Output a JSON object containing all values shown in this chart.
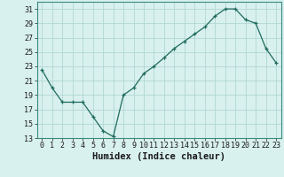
{
  "x": [
    0,
    1,
    2,
    3,
    4,
    5,
    6,
    7,
    8,
    9,
    10,
    11,
    12,
    13,
    14,
    15,
    16,
    17,
    18,
    19,
    20,
    21,
    22,
    23
  ],
  "y": [
    22.5,
    20.0,
    18.0,
    18.0,
    18.0,
    16.0,
    14.0,
    13.2,
    19.0,
    20.0,
    22.0,
    23.0,
    24.2,
    25.5,
    26.5,
    27.5,
    28.5,
    30.0,
    31.0,
    31.0,
    29.5,
    29.0,
    25.5,
    23.5
  ],
  "xlabel": "Humidex (Indice chaleur)",
  "ylim": [
    13,
    32
  ],
  "yticks": [
    13,
    15,
    17,
    19,
    21,
    23,
    25,
    27,
    29,
    31
  ],
  "xtick_labels": [
    "0",
    "1",
    "2",
    "3",
    "4",
    "5",
    "6",
    "7",
    "8",
    "9",
    "10",
    "11",
    "12",
    "13",
    "14",
    "15",
    "16",
    "17",
    "18",
    "19",
    "20",
    "21",
    "22",
    "23"
  ],
  "line_color": "#1f6b5e",
  "marker": "+",
  "bg_color": "#d8f0ee",
  "grid_color": "#b0d8d4",
  "label_fontsize": 7.5,
  "tick_fontsize": 6.0
}
